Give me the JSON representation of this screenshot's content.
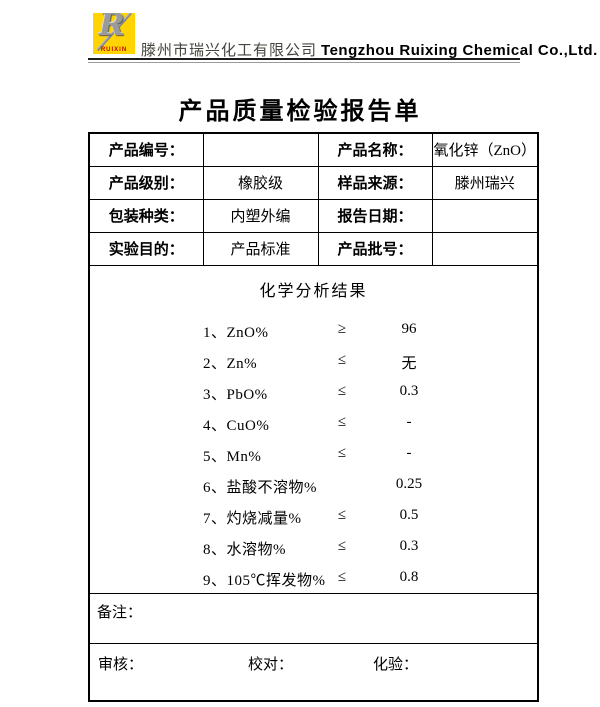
{
  "header": {
    "logo_letter": "R",
    "logo_brand": "RUIXIN",
    "company_cn": "滕州市瑞兴化工有限公司",
    "company_en": "Tengzhou Ruixing Chemical Co.,Ltd.",
    "logo_yellow": "#ffd400",
    "brand_red": "#c40000"
  },
  "title": "产品质量检验报告单",
  "info_table": {
    "rows": [
      {
        "label1": "产品编号：",
        "value1": "",
        "label2": "产品名称：",
        "value2": "氧化锌（ZnO）"
      },
      {
        "label1": "产品级别：",
        "value1": "橡胶级",
        "label2": "样品来源：",
        "value2": "滕州瑞兴"
      },
      {
        "label1": "包装种类：",
        "value1": "内塑外编",
        "label2": "报告日期：",
        "value2": ""
      },
      {
        "label1": "实验目的：",
        "value1": "产品标准",
        "label2": "产品批号：",
        "value2": ""
      }
    ]
  },
  "analysis": {
    "heading": "化学分析结果",
    "items": [
      {
        "name": "1、ZnO%",
        "symbol": "≥",
        "value": "96"
      },
      {
        "name": "2、Zn%",
        "symbol": "≤",
        "value": "无"
      },
      {
        "name": "3、PbO%",
        "symbol": "≤",
        "value": "0.3"
      },
      {
        "name": "4、CuO%",
        "symbol": "≤",
        "value": "-"
      },
      {
        "name": "5、Mn%",
        "symbol": "≤",
        "value": "-"
      },
      {
        "name": "6、盐酸不溶物%",
        "symbol": "",
        "value": "0.25"
      },
      {
        "name": "7、灼烧减量%",
        "symbol": "≤",
        "value": "0.5"
      },
      {
        "name": "8、水溶物%",
        "symbol": "≤",
        "value": "0.3"
      },
      {
        "name": "9、105℃挥发物%",
        "symbol": "≤",
        "value": "0.8"
      }
    ]
  },
  "remarks_label": "备注：",
  "footer": {
    "review_label": "审核：",
    "proofread_label": "校对：",
    "assay_label": "化验："
  }
}
